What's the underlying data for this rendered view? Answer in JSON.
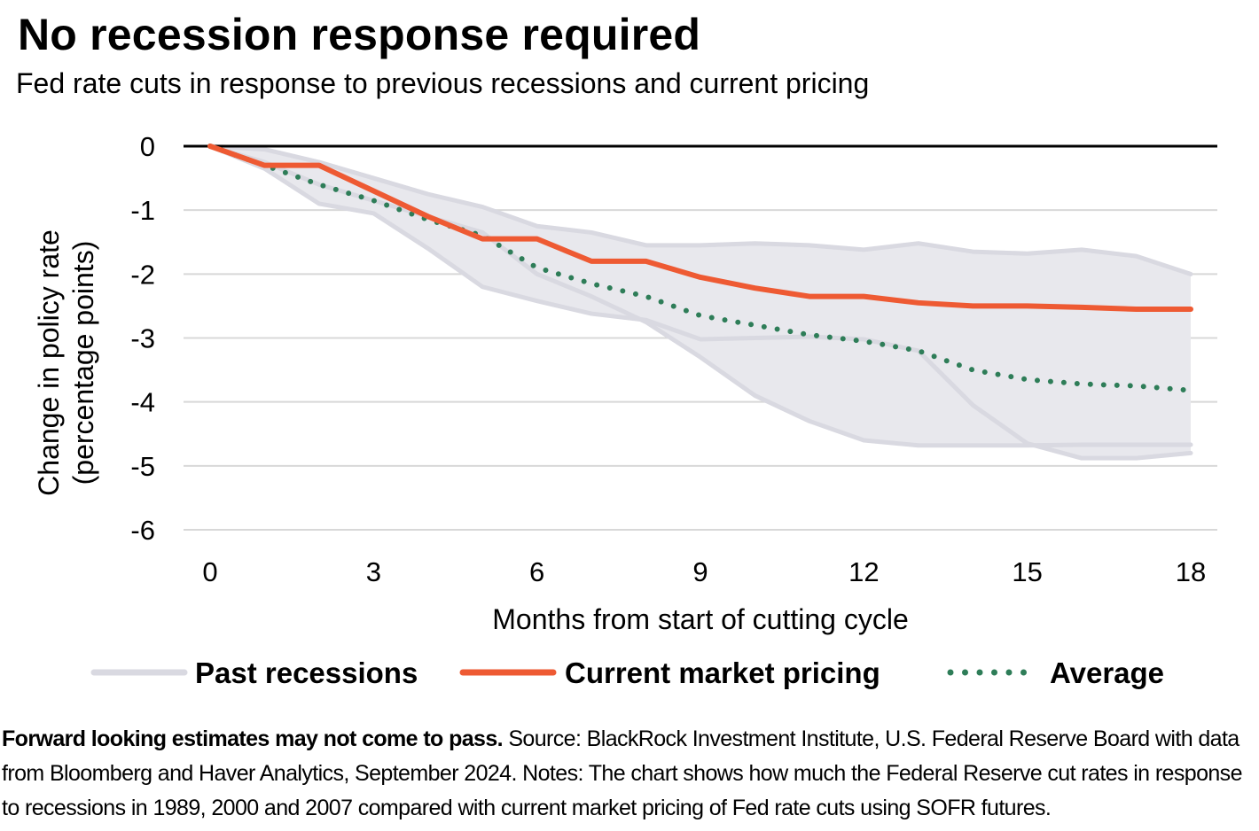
{
  "title": "No recession response required",
  "subtitle": "Fed rate cuts in response to previous recessions and current pricing",
  "colors": {
    "past": "#d9d9e1",
    "band": "#e8e8ed",
    "current": "#ee5a33",
    "average": "#2e7d58",
    "grid": "#d8d8d8",
    "zero": "#000000"
  },
  "chart_data": {
    "type": "line",
    "title": "No recession response required",
    "xlabel": "Months from start of cutting cycle",
    "ylabel_lines": [
      "Change in policy rate",
      "(percentage points)"
    ],
    "xlim": [
      0,
      18
    ],
    "ylim": [
      -6,
      0
    ],
    "x_ticks": [
      0,
      3,
      6,
      9,
      12,
      15,
      18
    ],
    "y_ticks": [
      0,
      -1,
      -2,
      -3,
      -4,
      -5,
      -6
    ],
    "x_tick_labels": [
      "0",
      "3",
      "6",
      "9",
      "12",
      "15",
      "18"
    ],
    "y_tick_labels": [
      "0",
      "-1",
      "-2",
      "-3",
      "-4",
      "-5",
      "-6"
    ],
    "grid": true,
    "shaded_band": "range between past recessions",
    "x": [
      0,
      1,
      2,
      3,
      4,
      5,
      6,
      7,
      8,
      9,
      10,
      11,
      12,
      13,
      14,
      15,
      16,
      17,
      18
    ],
    "series": [
      {
        "name": "Past recessions",
        "style": "gray-solid",
        "values": [
          0,
          -0.05,
          -0.25,
          -0.5,
          -0.75,
          -0.95,
          -1.25,
          -1.35,
          -1.55,
          -1.55,
          -1.52,
          -1.55,
          -1.62,
          -1.52,
          -1.65,
          -1.68,
          -1.62,
          -1.72,
          -2.0
        ]
      },
      {
        "name": "",
        "style": "gray-solid",
        "values": [
          0,
          -0.35,
          -0.9,
          -1.05,
          -1.6,
          -2.2,
          -2.42,
          -2.62,
          -2.72,
          -3.02,
          -3.0,
          -2.98,
          -3.02,
          -3.2,
          -4.05,
          -4.65,
          -4.88,
          -4.88,
          -4.8
        ]
      },
      {
        "name": "",
        "style": "gray-solid",
        "values": [
          0,
          -0.25,
          -0.6,
          -0.85,
          -1.1,
          -1.35,
          -2.0,
          -2.35,
          -2.75,
          -3.3,
          -3.9,
          -4.3,
          -4.6,
          -4.68,
          -4.68,
          -4.68,
          -4.67,
          -4.67,
          -4.67
        ]
      },
      {
        "name": "Current market pricing",
        "style": "orange-solid",
        "values": [
          0,
          -0.3,
          -0.3,
          -0.7,
          -1.1,
          -1.45,
          -1.45,
          -1.8,
          -1.8,
          -2.05,
          -2.22,
          -2.35,
          -2.35,
          -2.45,
          -2.5,
          -2.5,
          -2.52,
          -2.55,
          -2.55
        ]
      },
      {
        "name": "Average",
        "style": "green-dotted",
        "values": [
          0,
          -0.3,
          -0.6,
          -0.85,
          -1.15,
          -1.4,
          -1.9,
          -2.15,
          -2.35,
          -2.65,
          -2.8,
          -2.95,
          -3.05,
          -3.2,
          -3.5,
          -3.65,
          -3.72,
          -3.75,
          -3.82
        ]
      }
    ],
    "legend": [
      {
        "label": "Past recessions",
        "style": "gray-solid"
      },
      {
        "label": "Current market pricing",
        "style": "orange-solid"
      },
      {
        "label": "Average",
        "style": "green-dotted"
      }
    ],
    "legend_placement": "bottom"
  },
  "footnote": {
    "bold": "Forward looking estimates may not come to pass.",
    "text": " Source: BlackRock Investment Institute, U.S. Federal Reserve Board with data from Bloomberg and Haver Analytics, September 2024. Notes: The chart shows how much the Federal Reserve cut rates in response to recessions in 1989, 2000 and 2007 compared with current market pricing of Fed rate cuts using SOFR futures."
  }
}
